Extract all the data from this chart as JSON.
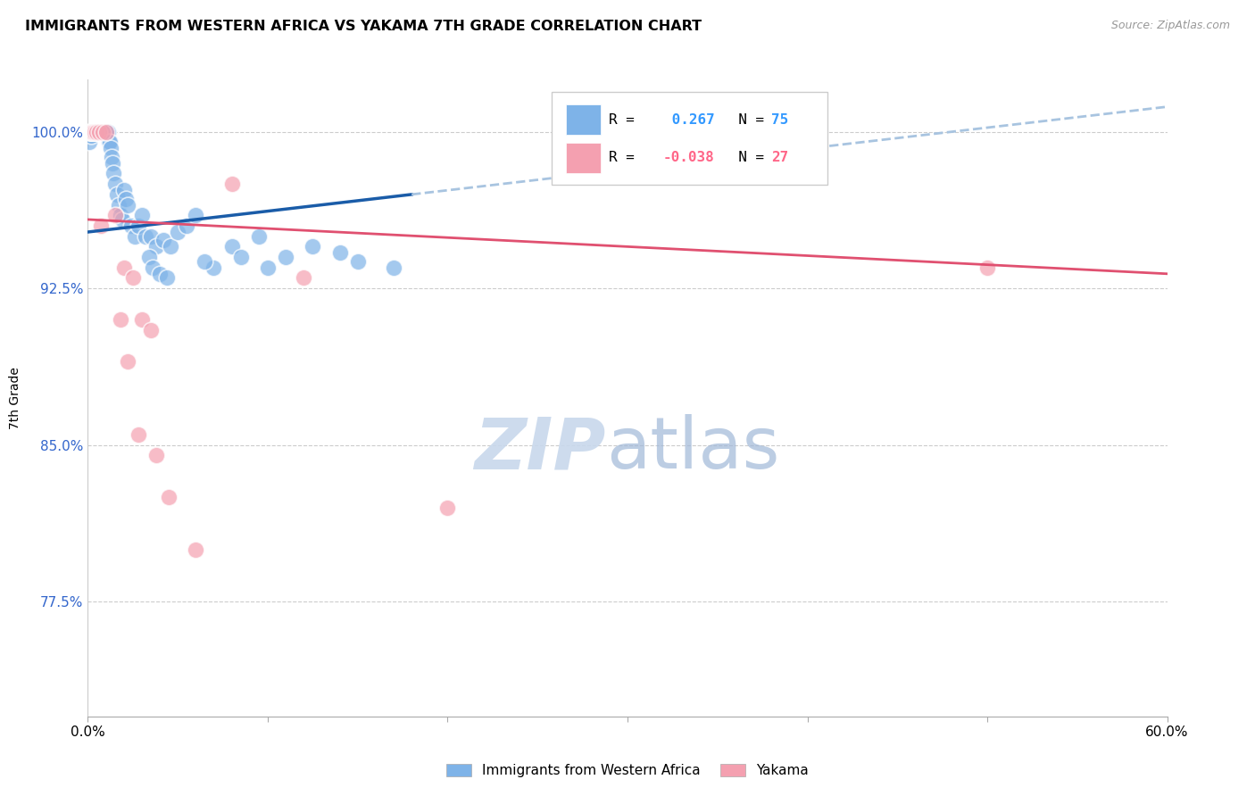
{
  "title": "IMMIGRANTS FROM WESTERN AFRICA VS YAKAMA 7TH GRADE CORRELATION CHART",
  "source": "Source: ZipAtlas.com",
  "ylabel": "7th Grade",
  "yticks": [
    77.5,
    85.0,
    92.5,
    100.0
  ],
  "ytick_labels": [
    "77.5%",
    "85.0%",
    "92.5%",
    "100.0%"
  ],
  "xmin": 0.0,
  "xmax": 60.0,
  "ymin": 72.0,
  "ymax": 102.5,
  "blue_R": 0.267,
  "blue_N": 75,
  "pink_R": -0.038,
  "pink_N": 27,
  "blue_color": "#7EB3E8",
  "pink_color": "#F4A0B0",
  "blue_line_color": "#1A5CA8",
  "pink_line_color": "#E05070",
  "blue_dash_color": "#A8C4E0",
  "legend_label_blue": "Immigrants from Western Africa",
  "legend_label_pink": "Yakama",
  "blue_line_x0": 0.0,
  "blue_line_y0": 95.2,
  "blue_line_x1": 60.0,
  "blue_line_y1": 101.2,
  "blue_solid_end": 18.0,
  "pink_line_x0": 0.0,
  "pink_line_y0": 95.8,
  "pink_line_x1": 60.0,
  "pink_line_y1": 93.2,
  "blue_x": [
    0.1,
    0.15,
    0.18,
    0.2,
    0.22,
    0.25,
    0.28,
    0.3,
    0.32,
    0.35,
    0.38,
    0.4,
    0.42,
    0.45,
    0.48,
    0.5,
    0.52,
    0.55,
    0.58,
    0.6,
    0.62,
    0.65,
    0.68,
    0.7,
    0.72,
    0.75,
    0.78,
    0.8,
    0.85,
    0.9,
    0.95,
    1.0,
    1.05,
    1.1,
    1.15,
    1.2,
    1.25,
    1.3,
    1.35,
    1.4,
    1.5,
    1.6,
    1.7,
    1.8,
    1.9,
    2.0,
    2.1,
    2.2,
    2.4,
    2.6,
    2.8,
    3.0,
    3.2,
    3.5,
    3.8,
    4.2,
    4.6,
    5.0,
    5.5,
    6.0,
    7.0,
    8.0,
    9.5,
    11.0,
    14.0,
    3.4,
    3.6,
    4.0,
    4.4,
    6.5,
    8.5,
    10.0,
    12.5,
    15.0,
    17.0
  ],
  "blue_y": [
    99.5,
    100.0,
    100.0,
    99.8,
    100.0,
    100.0,
    100.0,
    100.0,
    100.0,
    100.0,
    100.0,
    100.0,
    100.0,
    100.0,
    100.0,
    100.0,
    100.0,
    100.0,
    100.0,
    100.0,
    100.0,
    100.0,
    100.0,
    100.0,
    100.0,
    100.0,
    100.0,
    100.0,
    100.0,
    100.0,
    100.0,
    100.0,
    100.0,
    100.0,
    99.5,
    99.5,
    99.2,
    98.8,
    98.5,
    98.0,
    97.5,
    97.0,
    96.5,
    96.0,
    95.8,
    97.2,
    96.8,
    96.5,
    95.5,
    95.0,
    95.5,
    96.0,
    95.0,
    95.0,
    94.5,
    94.8,
    94.5,
    95.2,
    95.5,
    96.0,
    93.5,
    94.5,
    95.0,
    94.0,
    94.2,
    94.0,
    93.5,
    93.2,
    93.0,
    93.8,
    94.0,
    93.5,
    94.5,
    93.8,
    93.5
  ],
  "pink_x": [
    0.08,
    0.12,
    0.15,
    0.2,
    0.25,
    0.3,
    0.4,
    0.5,
    0.6,
    0.8,
    1.0,
    1.5,
    2.0,
    2.5,
    3.0,
    3.5,
    1.8,
    2.2,
    0.7,
    4.5,
    20.0,
    50.0,
    8.0,
    12.0,
    2.8,
    3.8,
    6.0
  ],
  "pink_y": [
    100.0,
    100.0,
    100.0,
    100.0,
    100.0,
    100.0,
    100.0,
    100.0,
    100.0,
    100.0,
    100.0,
    96.0,
    93.5,
    93.0,
    91.0,
    90.5,
    91.0,
    89.0,
    95.5,
    82.5,
    82.0,
    93.5,
    97.5,
    93.0,
    85.5,
    84.5,
    80.0
  ]
}
